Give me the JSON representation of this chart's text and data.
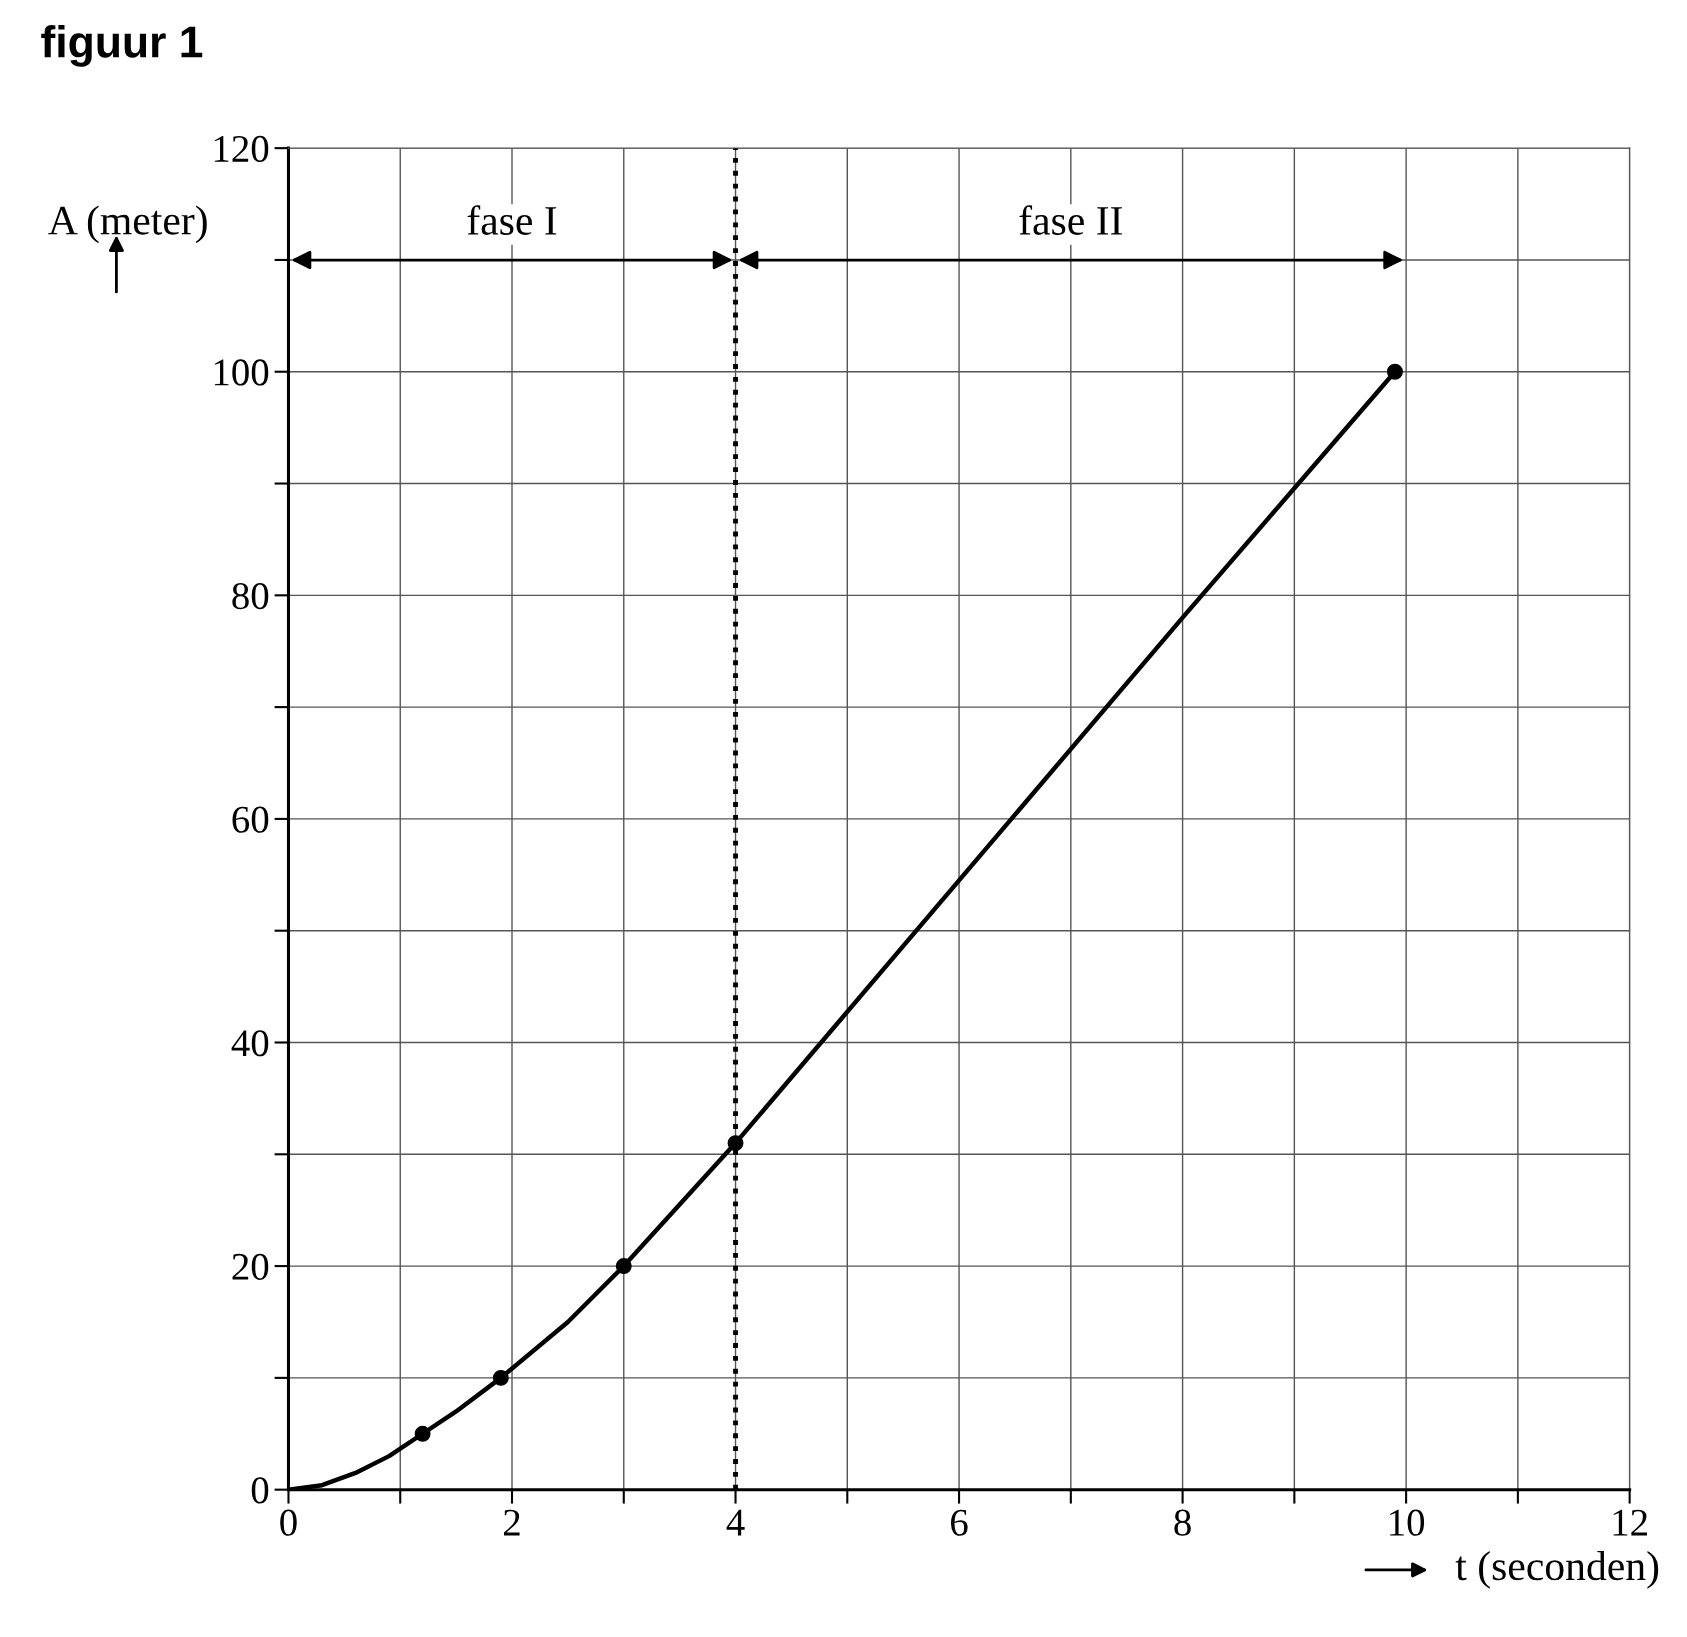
{
  "chart_data": {
    "type": "line",
    "title": "figuur 1",
    "xlabel": "t (seconden)",
    "ylabel": "A (meter)",
    "series": [
      {
        "color": "#000000",
        "marker": "none",
        "x": [
          0,
          0.3,
          0.6,
          0.9,
          1.2,
          1.5,
          1.9,
          2.5,
          3,
          3.5,
          4,
          6,
          8,
          9.9
        ],
        "values": [
          0,
          0.4,
          1.5,
          3,
          5,
          7,
          10,
          15,
          20,
          25.5,
          31,
          54.5,
          78,
          100
        ]
      },
      {
        "type": "scatter",
        "color": "#000000",
        "marker": "circle",
        "x": [
          1.2,
          1.9,
          3,
          4,
          9.9
        ],
        "values": [
          5,
          10,
          20,
          31,
          100
        ]
      }
    ],
    "xlim": [
      0,
      12
    ],
    "ylim": [
      0,
      120
    ],
    "xticks": [
      0,
      {
        "value": 1,
        "label": null
      },
      2,
      {
        "value": 3,
        "label": null
      },
      4,
      {
        "value": 5,
        "label": null
      },
      6,
      {
        "value": 7,
        "label": null
      },
      8,
      {
        "value": 9,
        "label": null
      },
      10,
      {
        "value": 11,
        "label": null
      },
      12
    ],
    "yticks": [
      0,
      {
        "value": 10,
        "label": null
      },
      20,
      {
        "value": 30,
        "label": null
      },
      40,
      {
        "value": 50,
        "label": null
      },
      60,
      {
        "value": 70,
        "label": null
      },
      80,
      {
        "value": 90,
        "label": null
      },
      100,
      {
        "value": 110,
        "label": null
      },
      120
    ],
    "grid": true,
    "ref_lines": [
      {
        "axis": "x",
        "value": 4,
        "line_style": "dotted",
        "color": "#000000"
      }
    ],
    "annotations": [
      "fase I",
      "fase II"
    ]
  }
}
